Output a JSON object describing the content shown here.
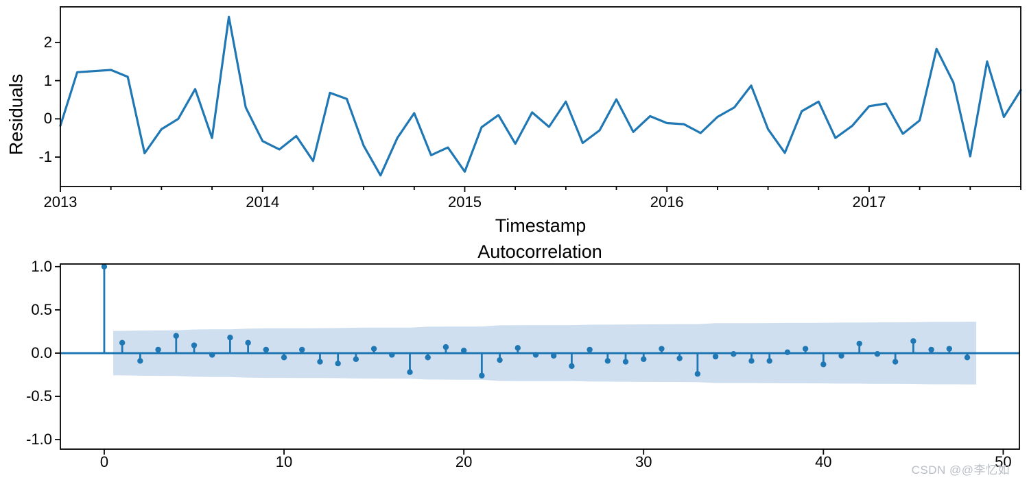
{
  "page": {
    "background": "#ffffff",
    "text_color": "#000000",
    "watermark": {
      "text": "CSDN @@李忆如",
      "color": "#b9bdc4"
    }
  },
  "chart_data": [
    {
      "type": "line",
      "name": "residuals-series",
      "ylabel": "Residuals",
      "xlabel": "Timestamp",
      "x_start": "2013-01",
      "frequency": "monthly",
      "x_tick_labels": [
        "2013",
        "2014",
        "2015",
        "2016",
        "2017"
      ],
      "x_tick_month_index": [
        0,
        12,
        24,
        36,
        48
      ],
      "minor_tick_every_months": 3,
      "y_ticks": [
        -1,
        0,
        1,
        2
      ],
      "ylim": [
        -1.77,
        2.93
      ],
      "grid": false,
      "legend": "none",
      "line_color": "#1f77b4",
      "values": [
        -0.18,
        1.22,
        1.25,
        1.28,
        1.1,
        -0.9,
        -0.27,
        0.0,
        0.78,
        -0.5,
        2.67,
        0.3,
        -0.58,
        -0.8,
        -0.45,
        -1.1,
        0.68,
        0.52,
        -0.7,
        -1.48,
        -0.5,
        0.15,
        -0.95,
        -0.75,
        -1.38,
        -0.22,
        0.1,
        -0.65,
        0.17,
        -0.21,
        0.45,
        -0.63,
        -0.3,
        0.51,
        -0.34,
        0.07,
        -0.11,
        -0.14,
        -0.37,
        0.05,
        0.3,
        0.87,
        -0.27,
        -0.89,
        0.2,
        0.45,
        -0.5,
        -0.18,
        0.33,
        0.4,
        -0.39,
        -0.04,
        1.83,
        0.95,
        -0.98,
        1.5,
        0.05,
        0.75
      ]
    },
    {
      "type": "stem",
      "name": "acf-plot",
      "title": "Autocorrelation",
      "x_ticks": [
        0,
        10,
        20,
        30,
        40,
        50
      ],
      "y_ticks": [
        1.0,
        0.5,
        0.0,
        -0.5,
        -1.0
      ],
      "xlim": [
        -2.44,
        50.9
      ],
      "ylim": [
        -1.11,
        1.03
      ],
      "grid": false,
      "legend": "none",
      "nobs": 58,
      "confidence_z": 1.96,
      "band_lag_range": [
        0.5,
        48.5
      ],
      "stem_color": "#1f77b4",
      "band_color": "#cfdfef",
      "acf_values": [
        1.0,
        0.12,
        -0.09,
        0.04,
        0.2,
        0.09,
        -0.02,
        0.18,
        0.12,
        0.04,
        -0.05,
        0.04,
        -0.1,
        -0.12,
        -0.07,
        0.05,
        -0.02,
        -0.22,
        -0.05,
        0.07,
        0.03,
        -0.26,
        -0.08,
        0.06,
        -0.02,
        -0.03,
        -0.15,
        0.04,
        -0.09,
        -0.1,
        -0.07,
        0.05,
        -0.06,
        -0.24,
        -0.04,
        -0.01,
        -0.09,
        -0.09,
        0.01,
        0.05,
        -0.13,
        -0.03,
        0.11,
        -0.01,
        -0.1,
        0.14,
        0.04,
        0.05,
        -0.05
      ]
    }
  ]
}
